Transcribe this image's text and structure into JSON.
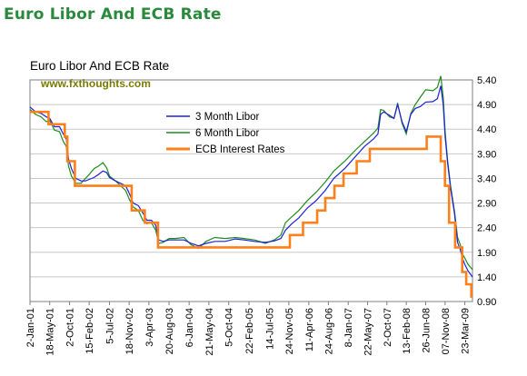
{
  "banner": {
    "title": "Euro Libor And ECB Rate"
  },
  "chart_data": {
    "type": "line",
    "title": "Euro Libor And ECB Rate",
    "watermark": "www.fxthoughts.com",
    "xlabel": "",
    "ylabel": "",
    "ylim": [
      0.9,
      5.4
    ],
    "yticks": [
      "5.40",
      "4.90",
      "4.40",
      "3.90",
      "3.40",
      "2.90",
      "2.40",
      "1.90",
      "1.40",
      "0.90"
    ],
    "xlim": [
      "2001-01-02",
      "2009-05-15"
    ],
    "grid": "horizontal",
    "legend_position": "center-top",
    "xticks": [
      {
        "date": "2001-01-02",
        "label": "2-Jan-01"
      },
      {
        "date": "2001-05-18",
        "label": "18-May-01"
      },
      {
        "date": "2001-10-02",
        "label": "2-Oct-01"
      },
      {
        "date": "2002-02-15",
        "label": "15-Feb-02"
      },
      {
        "date": "2002-07-05",
        "label": "5-Jul-02"
      },
      {
        "date": "2002-11-18",
        "label": "18-Nov-02"
      },
      {
        "date": "2003-04-03",
        "label": "3-Apr-03"
      },
      {
        "date": "2003-08-20",
        "label": "20-Aug-03"
      },
      {
        "date": "2004-01-06",
        "label": "6-Jan-04"
      },
      {
        "date": "2004-05-21",
        "label": "21-May-04"
      },
      {
        "date": "2004-10-05",
        "label": "5-Oct-04"
      },
      {
        "date": "2005-02-22",
        "label": "22-Feb-05"
      },
      {
        "date": "2005-07-14",
        "label": "14-Jul-05"
      },
      {
        "date": "2005-11-24",
        "label": "24-Nov-05"
      },
      {
        "date": "2006-04-11",
        "label": "11-Apr-06"
      },
      {
        "date": "2006-08-24",
        "label": "24-Aug-06"
      },
      {
        "date": "2007-01-08",
        "label": "8-Jan-07"
      },
      {
        "date": "2007-05-22",
        "label": "22-May-07"
      },
      {
        "date": "2007-10-02",
        "label": "2-Oct-07"
      },
      {
        "date": "2008-02-13",
        "label": "13-Feb-08"
      },
      {
        "date": "2008-06-26",
        "label": "26-Jun-08"
      },
      {
        "date": "2008-11-07",
        "label": "07-Nov-08"
      },
      {
        "date": "2009-03-23",
        "label": "23-Mar-09"
      }
    ],
    "series": [
      {
        "name": "3 Month Libor",
        "color": "#1f1fd6",
        "step": false,
        "points": [
          [
            "2001-01-02",
            4.85
          ],
          [
            "2001-02-10",
            4.75
          ],
          [
            "2001-03-20",
            4.72
          ],
          [
            "2001-04-25",
            4.65
          ],
          [
            "2001-05-18",
            4.62
          ],
          [
            "2001-06-20",
            4.45
          ],
          [
            "2001-07-25",
            4.45
          ],
          [
            "2001-08-20",
            4.3
          ],
          [
            "2001-09-10",
            4.2
          ],
          [
            "2001-09-25",
            3.8
          ],
          [
            "2001-10-15",
            3.6
          ],
          [
            "2001-11-15",
            3.4
          ],
          [
            "2001-12-20",
            3.35
          ],
          [
            "2002-01-20",
            3.35
          ],
          [
            "2002-02-15",
            3.38
          ],
          [
            "2002-03-20",
            3.42
          ],
          [
            "2002-04-20",
            3.48
          ],
          [
            "2002-05-20",
            3.55
          ],
          [
            "2002-06-15",
            3.52
          ],
          [
            "2002-07-05",
            3.42
          ],
          [
            "2002-08-15",
            3.35
          ],
          [
            "2002-09-20",
            3.3
          ],
          [
            "2002-10-25",
            3.25
          ],
          [
            "2002-11-18",
            3.1
          ],
          [
            "2002-12-15",
            2.9
          ],
          [
            "2003-01-20",
            2.85
          ],
          [
            "2003-02-20",
            2.7
          ],
          [
            "2003-03-20",
            2.55
          ],
          [
            "2003-04-20",
            2.55
          ],
          [
            "2003-05-20",
            2.45
          ],
          [
            "2003-06-10",
            2.15
          ],
          [
            "2003-07-10",
            2.12
          ],
          [
            "2003-08-20",
            2.15
          ],
          [
            "2003-10-01",
            2.15
          ],
          [
            "2003-12-01",
            2.15
          ],
          [
            "2004-01-20",
            2.08
          ],
          [
            "2004-03-10",
            2.03
          ],
          [
            "2004-05-01",
            2.08
          ],
          [
            "2004-07-01",
            2.12
          ],
          [
            "2004-09-10",
            2.12
          ],
          [
            "2004-11-20",
            2.17
          ],
          [
            "2005-01-20",
            2.15
          ],
          [
            "2005-04-01",
            2.12
          ],
          [
            "2005-06-15",
            2.1
          ],
          [
            "2005-08-15",
            2.13
          ],
          [
            "2005-09-30",
            2.18
          ],
          [
            "2005-11-01",
            2.35
          ],
          [
            "2005-12-15",
            2.48
          ],
          [
            "2006-02-01",
            2.6
          ],
          [
            "2006-04-01",
            2.8
          ],
          [
            "2006-06-01",
            2.95
          ],
          [
            "2006-08-01",
            3.15
          ],
          [
            "2006-10-01",
            3.4
          ],
          [
            "2006-12-15",
            3.6
          ],
          [
            "2007-03-01",
            3.85
          ],
          [
            "2007-05-01",
            4.05
          ],
          [
            "2007-07-01",
            4.2
          ],
          [
            "2007-08-01",
            4.3
          ],
          [
            "2007-08-20",
            4.7
          ],
          [
            "2007-09-10",
            4.75
          ],
          [
            "2007-10-20",
            4.68
          ],
          [
            "2007-11-20",
            4.62
          ],
          [
            "2007-12-15",
            4.9
          ],
          [
            "2008-01-15",
            4.55
          ],
          [
            "2008-02-13",
            4.35
          ],
          [
            "2008-03-15",
            4.7
          ],
          [
            "2008-04-15",
            4.82
          ],
          [
            "2008-05-20",
            4.86
          ],
          [
            "2008-06-26",
            4.95
          ],
          [
            "2008-08-15",
            4.96
          ],
          [
            "2008-09-15",
            5.02
          ],
          [
            "2008-10-08",
            5.28
          ],
          [
            "2008-10-25",
            4.9
          ],
          [
            "2008-11-07",
            4.25
          ],
          [
            "2008-11-25",
            3.7
          ],
          [
            "2008-12-15",
            3.2
          ],
          [
            "2009-01-10",
            2.7
          ],
          [
            "2009-02-01",
            2.1
          ],
          [
            "2009-02-20",
            1.95
          ],
          [
            "2009-03-10",
            1.75
          ],
          [
            "2009-03-23",
            1.65
          ],
          [
            "2009-04-15",
            1.52
          ],
          [
            "2009-05-15",
            1.4
          ]
        ]
      },
      {
        "name": "6 Month Libor",
        "color": "#1f8c1f",
        "step": false,
        "points": [
          [
            "2001-01-02",
            4.8
          ],
          [
            "2001-02-10",
            4.7
          ],
          [
            "2001-03-20",
            4.65
          ],
          [
            "2001-04-25",
            4.55
          ],
          [
            "2001-05-18",
            4.58
          ],
          [
            "2001-06-20",
            4.38
          ],
          [
            "2001-07-25",
            4.35
          ],
          [
            "2001-08-20",
            4.15
          ],
          [
            "2001-09-10",
            4.05
          ],
          [
            "2001-09-25",
            3.65
          ],
          [
            "2001-10-15",
            3.45
          ],
          [
            "2001-11-15",
            3.3
          ],
          [
            "2001-12-20",
            3.3
          ],
          [
            "2002-01-20",
            3.4
          ],
          [
            "2002-02-15",
            3.48
          ],
          [
            "2002-03-20",
            3.6
          ],
          [
            "2002-04-20",
            3.65
          ],
          [
            "2002-05-20",
            3.72
          ],
          [
            "2002-06-15",
            3.62
          ],
          [
            "2002-07-05",
            3.45
          ],
          [
            "2002-08-15",
            3.35
          ],
          [
            "2002-09-20",
            3.25
          ],
          [
            "2002-10-25",
            3.15
          ],
          [
            "2002-11-18",
            2.98
          ],
          [
            "2002-12-15",
            2.82
          ],
          [
            "2003-01-20",
            2.75
          ],
          [
            "2003-02-20",
            2.55
          ],
          [
            "2003-03-20",
            2.48
          ],
          [
            "2003-04-20",
            2.5
          ],
          [
            "2003-05-20",
            2.35
          ],
          [
            "2003-06-10",
            2.08
          ],
          [
            "2003-07-10",
            2.1
          ],
          [
            "2003-08-20",
            2.18
          ],
          [
            "2003-10-01",
            2.18
          ],
          [
            "2003-12-01",
            2.2
          ],
          [
            "2004-01-20",
            2.05
          ],
          [
            "2004-03-10",
            1.98
          ],
          [
            "2004-05-01",
            2.12
          ],
          [
            "2004-07-01",
            2.2
          ],
          [
            "2004-09-10",
            2.18
          ],
          [
            "2004-11-20",
            2.2
          ],
          [
            "2005-01-20",
            2.18
          ],
          [
            "2005-04-01",
            2.15
          ],
          [
            "2005-06-15",
            2.08
          ],
          [
            "2005-08-15",
            2.15
          ],
          [
            "2005-09-30",
            2.25
          ],
          [
            "2005-11-01",
            2.5
          ],
          [
            "2005-12-15",
            2.62
          ],
          [
            "2006-02-01",
            2.75
          ],
          [
            "2006-04-01",
            2.95
          ],
          [
            "2006-06-01",
            3.12
          ],
          [
            "2006-08-01",
            3.32
          ],
          [
            "2006-10-01",
            3.55
          ],
          [
            "2006-12-15",
            3.75
          ],
          [
            "2007-03-01",
            3.98
          ],
          [
            "2007-05-01",
            4.15
          ],
          [
            "2007-07-01",
            4.32
          ],
          [
            "2007-08-01",
            4.42
          ],
          [
            "2007-08-20",
            4.8
          ],
          [
            "2007-09-10",
            4.78
          ],
          [
            "2007-10-20",
            4.65
          ],
          [
            "2007-11-20",
            4.62
          ],
          [
            "2007-12-15",
            4.93
          ],
          [
            "2008-01-15",
            4.52
          ],
          [
            "2008-02-13",
            4.3
          ],
          [
            "2008-03-15",
            4.72
          ],
          [
            "2008-04-15",
            4.9
          ],
          [
            "2008-05-20",
            5.05
          ],
          [
            "2008-06-26",
            5.2
          ],
          [
            "2008-08-15",
            5.18
          ],
          [
            "2008-09-15",
            5.25
          ],
          [
            "2008-10-08",
            5.48
          ],
          [
            "2008-10-25",
            5.05
          ],
          [
            "2008-11-07",
            4.35
          ],
          [
            "2008-11-25",
            3.75
          ],
          [
            "2008-12-15",
            3.25
          ],
          [
            "2009-01-10",
            2.75
          ],
          [
            "2009-02-01",
            2.2
          ],
          [
            "2009-02-20",
            2.05
          ],
          [
            "2009-03-10",
            1.85
          ],
          [
            "2009-03-23",
            1.78
          ],
          [
            "2009-04-15",
            1.65
          ],
          [
            "2009-05-15",
            1.55
          ]
        ]
      },
      {
        "name": "ECB Interest Rates",
        "color": "#ff7f1a",
        "step": true,
        "points": [
          [
            "2001-01-02",
            4.75
          ],
          [
            "2001-05-10",
            4.5
          ],
          [
            "2001-08-30",
            4.25
          ],
          [
            "2001-09-17",
            3.75
          ],
          [
            "2001-11-08",
            3.25
          ],
          [
            "2002-12-05",
            2.75
          ],
          [
            "2003-03-06",
            2.5
          ],
          [
            "2003-06-05",
            2.0
          ],
          [
            "2005-12-01",
            2.25
          ],
          [
            "2006-03-02",
            2.5
          ],
          [
            "2006-06-08",
            2.75
          ],
          [
            "2006-08-03",
            3.0
          ],
          [
            "2006-10-05",
            3.25
          ],
          [
            "2006-12-07",
            3.5
          ],
          [
            "2007-03-08",
            3.75
          ],
          [
            "2007-06-06",
            4.0
          ],
          [
            "2008-07-03",
            4.25
          ],
          [
            "2008-10-08",
            3.75
          ],
          [
            "2008-11-06",
            3.25
          ],
          [
            "2008-12-04",
            2.5
          ],
          [
            "2009-01-15",
            2.0
          ],
          [
            "2009-03-05",
            1.5
          ],
          [
            "2009-04-02",
            1.25
          ],
          [
            "2009-05-07",
            1.0
          ],
          [
            "2009-05-15",
            1.0
          ]
        ]
      }
    ]
  }
}
